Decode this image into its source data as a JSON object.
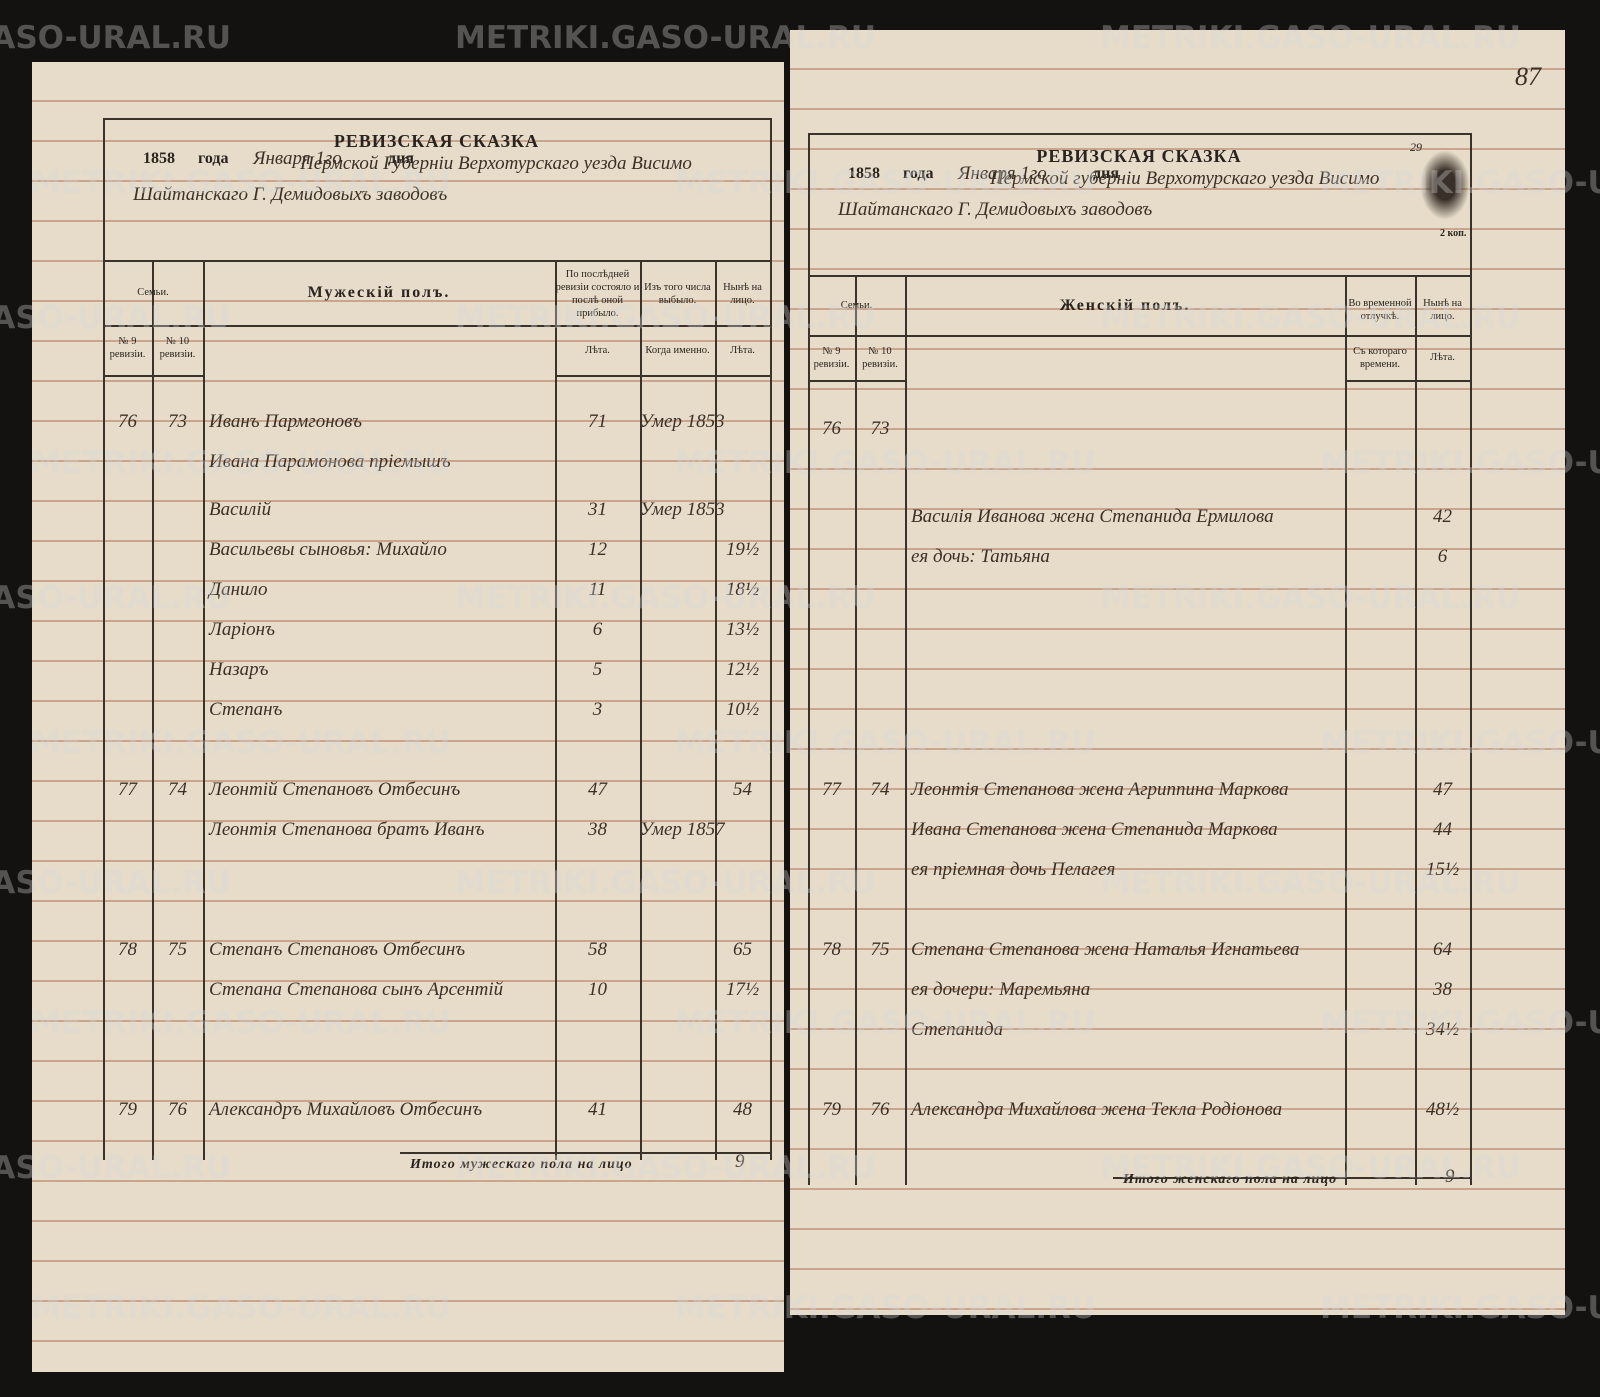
{
  "watermark": "METRIKI.GASO-URAL.RU",
  "left_page": {
    "title": "РЕВИЗСКАЯ СКАЗКА",
    "year": "1858",
    "year_word": "года",
    "date": "Января 1го",
    "day_word": "дня",
    "place": "Пермской Губерніи Верхотурскаго уезда Висимо Шайтанскаго Г. Демидовыхъ заводовъ",
    "headers": {
      "families": "Семьи.",
      "sex": "Мужескій полъ.",
      "last_revision": "По послѣдней ревизіи состояло и послѣ оной прибыло.",
      "departed": "Изъ того числа выбыло.",
      "present": "Нынѣ на лицо.",
      "rev9": "№ 9 ревизіи.",
      "rev10": "№ 10 ревизіи.",
      "age": "Лѣта.",
      "when": "Когда именно.",
      "age_now": "Лѣта."
    },
    "rows": [
      {
        "r9": "76",
        "r10": "73",
        "name": "Иванъ Пармгоновъ",
        "age": "71",
        "when": "Умер 1853"
      },
      {
        "name": "Ивана Парамонова пріемышъ"
      },
      {
        "name": "Василій",
        "age": "31",
        "when": "Умер 1853"
      },
      {
        "name": "Васильевы сыновья: Михайло",
        "age": "12",
        "now": "19½"
      },
      {
        "name": "Данило",
        "age": "11",
        "now": "18½"
      },
      {
        "name": "Ларіонъ",
        "age": "6",
        "now": "13½"
      },
      {
        "name": "Назаръ",
        "age": "5",
        "now": "12½"
      },
      {
        "name": "Степанъ",
        "age": "3",
        "now": "10½"
      },
      {
        "r9": "77",
        "r10": "74",
        "name": "Леонтій Степановъ Отбесинъ",
        "age": "47",
        "now": "54"
      },
      {
        "name": "Леонтія Степанова братъ Иванъ",
        "age": "38",
        "when": "Умер 1857"
      },
      {
        "r9": "78",
        "r10": "75",
        "name": "Степанъ Степановъ Отбесинъ",
        "age": "58",
        "now": "65"
      },
      {
        "name": "Степана Степанова сынъ Арсентій",
        "age": "10",
        "now": "17½"
      },
      {
        "r9": "79",
        "r10": "76",
        "name": "Александръ Михайловъ Отбесинъ",
        "age": "41",
        "now": "48"
      }
    ],
    "total_label": "Итого мужескаго пола на лицо",
    "total": "9"
  },
  "right_page": {
    "folio": "87",
    "sheet_no": "29",
    "stamp": "2 коп.",
    "title": "РЕВИЗСКАЯ СКАЗКА",
    "year": "1858",
    "year_word": "года",
    "date": "Января 1го",
    "day_word": "дня",
    "place": "Пермской губерніи Верхотурскаго уезда Висимо Шайтанскаго Г. Демидовыхъ заводовъ",
    "headers": {
      "families": "Семьи.",
      "sex": "Женскій полъ.",
      "away": "Во временной отлучкѣ.",
      "present": "Нынѣ на лицо.",
      "rev9": "№ 9 ревизіи.",
      "rev10": "№ 10 ревизіи.",
      "since": "Съ котораго времени.",
      "age": "Лѣта."
    },
    "rows": [
      {
        "r9": "76",
        "r10": "73"
      },
      {
        "name": "Василія Иванова жена Степанида Ермилова",
        "now": "42"
      },
      {
        "name": "ея дочь: Татьяна",
        "now": "6"
      },
      {
        "r9": "77",
        "r10": "74",
        "name": "Леонтія Степанова жена Агриппина Маркова",
        "now": "47"
      },
      {
        "name": "Ивана Степанова жена Степанида Маркова",
        "now": "44"
      },
      {
        "name": "ея пріемная дочь Пелагея",
        "now": "15½"
      },
      {
        "r9": "78",
        "r10": "75",
        "name": "Степана Степанова жена Наталья Игнатьева",
        "now": "64"
      },
      {
        "name": "ея дочери: Маремьяна",
        "now": "38"
      },
      {
        "name": "Степанида",
        "now": "34½"
      },
      {
        "r9": "79",
        "r10": "76",
        "name": "Александра Михайлова жена Текла Родіонова",
        "now": "48½"
      }
    ],
    "total_label": "Итого женскаго пола на лицо",
    "total": "9"
  }
}
